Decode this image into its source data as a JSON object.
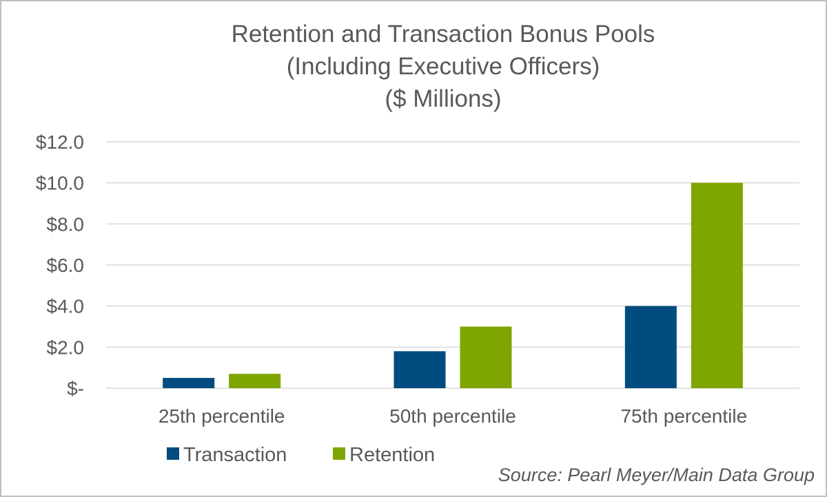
{
  "chart_data": {
    "type": "bar",
    "title": [
      "Retention and Transaction Bonus Pools",
      "(Including Executive Officers)",
      "($ Millions)"
    ],
    "categories": [
      "25th percentile",
      "50th percentile",
      "75th percentile"
    ],
    "series": [
      {
        "name": "Transaction",
        "color": "#004b7f",
        "values": [
          0.5,
          1.8,
          4.0
        ]
      },
      {
        "name": "Retention",
        "color": "#7fa500",
        "values": [
          0.7,
          3.0,
          10.0
        ]
      }
    ],
    "ylim": [
      0,
      12
    ],
    "yticks": [
      {
        "value": 0,
        "label": "$-"
      },
      {
        "value": 2,
        "label": "$2.0"
      },
      {
        "value": 4,
        "label": "$4.0"
      },
      {
        "value": 6,
        "label": "$6.0"
      },
      {
        "value": 8,
        "label": "$8.0"
      },
      {
        "value": 10,
        "label": "$10.0"
      },
      {
        "value": 12,
        "label": "$12.0"
      }
    ],
    "grid": true,
    "legend_position": "bottom",
    "source": "Source: Pearl Meyer/Main Data Group"
  }
}
